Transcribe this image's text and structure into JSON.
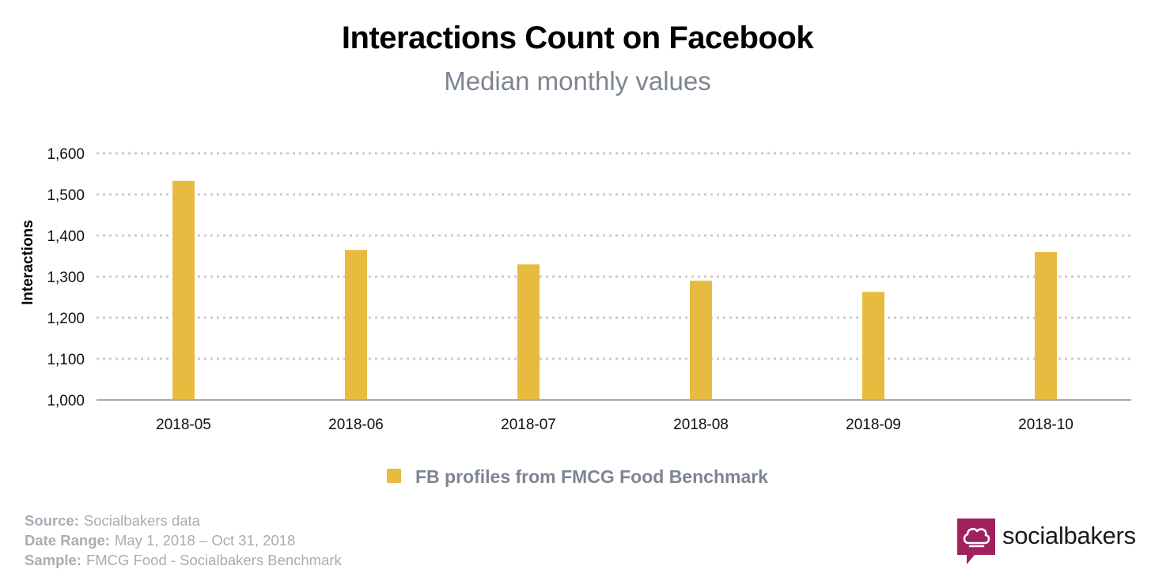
{
  "chart_data": {
    "type": "bar",
    "title": "Interactions Count on Facebook",
    "subtitle": "Median monthly values",
    "ylabel": "Interactions",
    "xlabel": "",
    "categories": [
      "2018-05",
      "2018-06",
      "2018-07",
      "2018-08",
      "2018-09",
      "2018-10"
    ],
    "series": [
      {
        "name": "FB profiles from FMCG Food Benchmark",
        "values": [
          1533,
          1365,
          1330,
          1290,
          1263,
          1360
        ],
        "color": "#e6bb3f"
      }
    ],
    "ylim": [
      1000,
      1600
    ],
    "yticks": [
      1000,
      1100,
      1200,
      1300,
      1400,
      1500,
      1600
    ],
    "ytick_labels": [
      "1,000",
      "1,100",
      "1,200",
      "1,300",
      "1,400",
      "1,500",
      "1,600"
    ],
    "grid": "horizontal-dotted",
    "legend_position": "bottom-center"
  },
  "footer": {
    "source_label": "Source:",
    "source_value": "Socialbakers data",
    "date_label": "Date Range:",
    "date_value": "May 1, 2018  – Oct 31, 2018",
    "sample_label": "Sample:",
    "sample_value": "FMCG Food - Socialbakers Benchmark"
  },
  "brand": {
    "name": "socialbakers",
    "logo_icon": "chef-hat-speech-bubble-icon",
    "logo_color": "#a0215e"
  },
  "colors": {
    "grid": "#cccccc",
    "axis": "#aaaaaa",
    "subtle_text": "#7d8591"
  }
}
